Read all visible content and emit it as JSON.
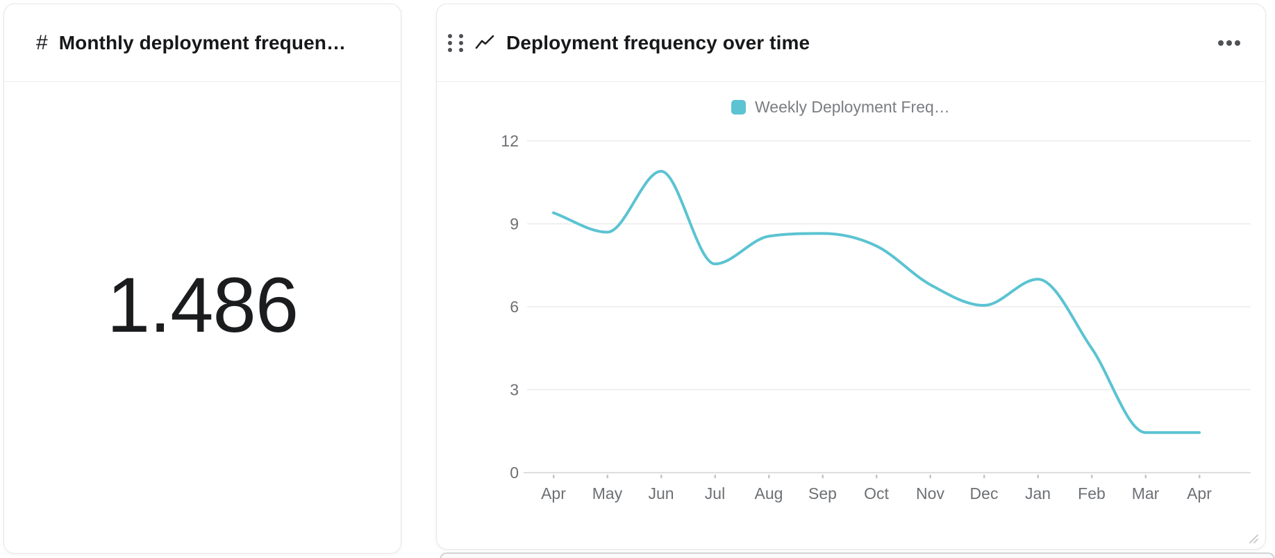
{
  "page": {
    "background": "#ffffff"
  },
  "stat_card": {
    "hash_icon": "#",
    "title": "Monthly deployment frequen…",
    "value": "1.486"
  },
  "chart_card": {
    "title": "Deployment frequency over time",
    "icons": {
      "drag": "drag-handle-icon",
      "type": "line-chart-icon",
      "menu": "ellipsis-icon",
      "resize": "resize-corner-icon"
    }
  },
  "chart_data": {
    "type": "line",
    "title": "Deployment frequency over time",
    "legend_position": "top-center",
    "grid": true,
    "smooth": true,
    "categories": [
      "Apr",
      "May",
      "Jun",
      "Jul",
      "Aug",
      "Sep",
      "Oct",
      "Nov",
      "Dec",
      "Jan",
      "Feb",
      "Mar",
      "Apr"
    ],
    "series": [
      {
        "name": "Weekly Deployment Freq…",
        "color": "#5bc3d2",
        "values": [
          9.4,
          8.7,
          10.9,
          7.55,
          8.55,
          8.65,
          8.2,
          6.8,
          6.05,
          7.0,
          4.5,
          1.45,
          1.45
        ]
      }
    ],
    "yticks": [
      0,
      3,
      6,
      9,
      12
    ],
    "ylim": [
      0,
      12.7
    ],
    "xlabel": "",
    "ylabel": "",
    "colors": {
      "grid": "#ebebeb",
      "axis_line": "#dedede",
      "tick_text": "#6d7074",
      "legend_text": "#7a7d81",
      "tick_mark": "#c6c6c6"
    }
  }
}
